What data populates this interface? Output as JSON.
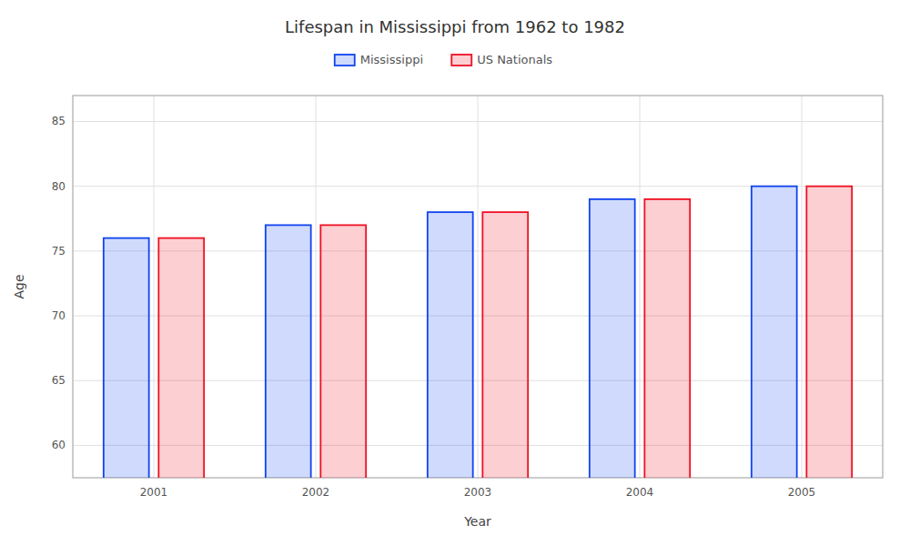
{
  "chart_data": {
    "type": "bar",
    "title": "Lifespan in Mississippi from 1962 to 1982",
    "x_label": "Year",
    "y_label": "Age",
    "categories": [
      "2001",
      "2002",
      "2003",
      "2004",
      "2005"
    ],
    "series": [
      {
        "name": "Mississippi",
        "color": "#1144ee",
        "values": [
          76,
          77,
          78,
          79,
          80
        ]
      },
      {
        "name": "US Nationals",
        "color": "#ee1122",
        "values": [
          76,
          77,
          78,
          79,
          80
        ]
      }
    ],
    "ylim": [
      57.5,
      87
    ],
    "yticks": [
      60,
      65,
      70,
      75,
      80,
      85
    ],
    "grid": true,
    "legend": "top"
  }
}
